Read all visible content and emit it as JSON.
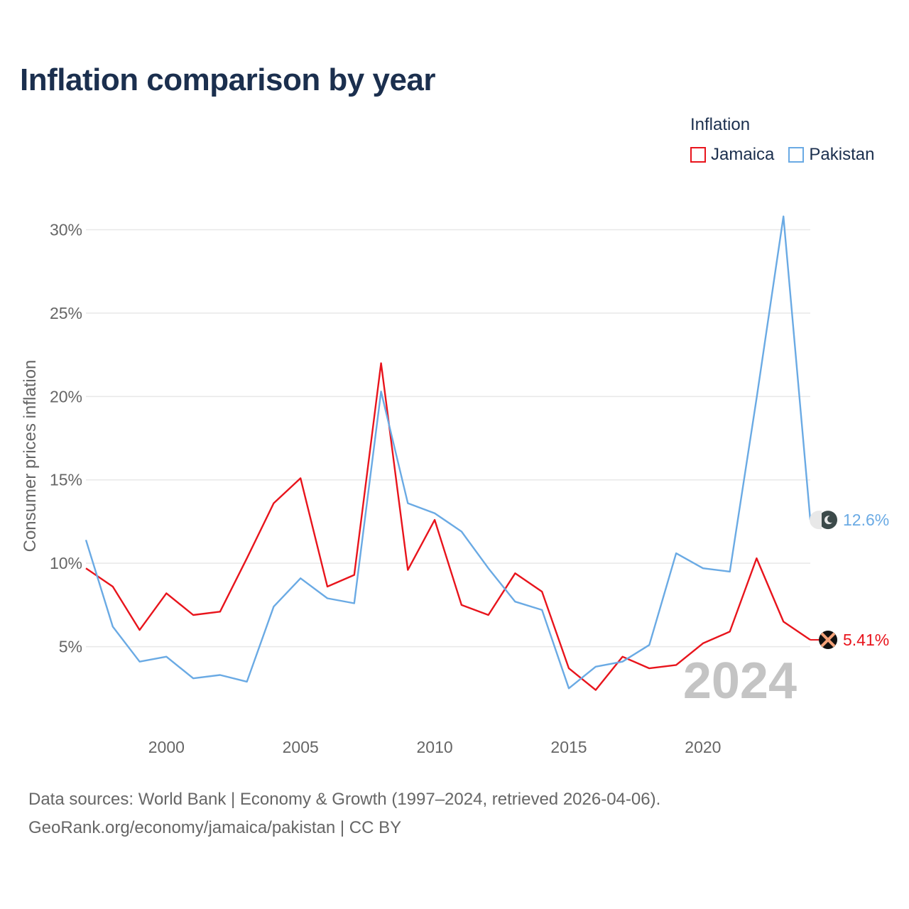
{
  "title": "Inflation comparison by year",
  "legend": {
    "title": "Inflation",
    "items": [
      {
        "label": "Jamaica",
        "color": "#e8141c"
      },
      {
        "label": "Pakistan",
        "color": "#6aaae4"
      }
    ]
  },
  "sources": {
    "line1": "Data sources: World Bank | Economy & Growth (1997–2024, retrieved 2026-04-06).",
    "line2": "GeoRank.org/economy/jamaica/pakistan | CC BY"
  },
  "chart_data": {
    "type": "line",
    "ylabel": "Consumer prices inflation",
    "xlabel": "",
    "xlim": [
      1997,
      2024
    ],
    "ylim": [
      0,
      31
    ],
    "x_ticks": [
      2000,
      2005,
      2010,
      2015,
      2020
    ],
    "y_ticks": [
      5,
      10,
      15,
      20,
      25,
      30
    ],
    "y_tick_labels": [
      "5%",
      "10%",
      "15%",
      "20%",
      "25%",
      "30%"
    ],
    "grid": true,
    "watermark_year": "2024",
    "x": [
      1997,
      1998,
      1999,
      2000,
      2001,
      2002,
      2003,
      2004,
      2005,
      2006,
      2007,
      2008,
      2009,
      2010,
      2011,
      2012,
      2013,
      2014,
      2015,
      2016,
      2017,
      2018,
      2019,
      2020,
      2021,
      2022,
      2023,
      2024
    ],
    "series": [
      {
        "name": "Jamaica",
        "color": "#e8141c",
        "end_label": "5.41%",
        "marker_icon": "jamaica-flag-icon",
        "values": [
          9.7,
          8.6,
          6.0,
          8.2,
          6.9,
          7.1,
          10.3,
          13.6,
          15.1,
          8.6,
          9.3,
          22.0,
          9.6,
          12.6,
          7.5,
          6.9,
          9.4,
          8.3,
          3.7,
          2.4,
          4.4,
          3.7,
          3.9,
          5.2,
          5.9,
          10.3,
          6.5,
          5.41
        ]
      },
      {
        "name": "Pakistan",
        "color": "#6aaae4",
        "end_label": "12.6%",
        "marker_icon": "pakistan-flag-icon",
        "values": [
          11.4,
          6.2,
          4.1,
          4.4,
          3.1,
          3.3,
          2.9,
          7.4,
          9.1,
          7.9,
          7.6,
          20.3,
          13.6,
          13.0,
          11.9,
          9.7,
          7.7,
          7.2,
          2.5,
          3.8,
          4.1,
          5.1,
          10.6,
          9.7,
          9.5,
          19.9,
          30.8,
          12.6
        ]
      }
    ]
  }
}
